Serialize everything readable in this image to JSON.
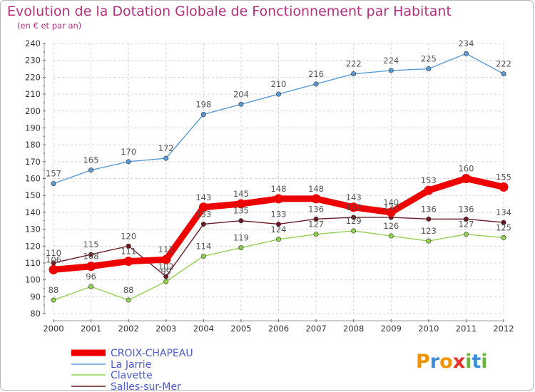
{
  "chart_data": {
    "type": "line",
    "title": "Evolution de la Dotation Globale de Fonctionnement par Habitant",
    "subtitle": "(en € et par an)",
    "x": [
      "2000",
      "2001",
      "2002",
      "2003",
      "2004",
      "2005",
      "2006",
      "2007",
      "2008",
      "2009",
      "2010",
      "2011",
      "2012"
    ],
    "ylim": [
      80,
      240
    ],
    "ytick_step": 10,
    "grid": "horizontal dashed",
    "legend_position": "bottom-left",
    "series": [
      {
        "name": "La Jarrie",
        "color": "#5b9bd5",
        "values": [
          157,
          165,
          170,
          172,
          198,
          204,
          210,
          216,
          222,
          224,
          225,
          234,
          222
        ]
      },
      {
        "name": "Clavette",
        "color": "#92d050",
        "values": [
          88,
          96,
          88,
          99,
          114,
          119,
          124,
          127,
          129,
          126,
          123,
          127,
          125
        ]
      },
      {
        "name": "Salles-sur-Mer",
        "color": "#6b1a24",
        "values": [
          110,
          115,
          120,
          102,
          133,
          135,
          133,
          136,
          137,
          137,
          136,
          136,
          134
        ]
      },
      {
        "name": "CROIX-CHAPEAU",
        "color": "#ee0000",
        "values": [
          106,
          108,
          111,
          112,
          143,
          145,
          148,
          148,
          143,
          140,
          153,
          160,
          155
        ]
      }
    ],
    "labels": {
      "La Jarrie": [
        "157",
        "165",
        "170",
        "172",
        "198",
        "204",
        "210",
        "216",
        "222",
        "224",
        "225",
        "234",
        "222"
      ],
      "Clavette": [
        "88",
        "96",
        "88",
        "99",
        "114",
        "119",
        "124",
        "127",
        "129",
        "126",
        "123",
        "127",
        "125"
      ],
      "Salles-sur-Mer": [
        "110",
        "115",
        "120",
        "102",
        "133",
        "135",
        "133",
        "136",
        "137",
        "137",
        "136",
        "136",
        "134"
      ],
      "CROIX-CHAPEAU": [
        "106",
        "108",
        "111",
        "112",
        "143",
        "145",
        "148",
        "148",
        "143",
        "140",
        "153",
        "160",
        "155"
      ]
    },
    "legend_order": [
      "CROIX-CHAPEAU",
      "La Jarrie",
      "Clavette",
      "Salles-sur-Mer"
    ]
  },
  "logo": {
    "text": "Proxiti",
    "letters": [
      {
        "ch": "P",
        "color": "#f39200"
      },
      {
        "ch": "r",
        "color": "#3b8fd8"
      },
      {
        "ch": "o",
        "color": "#f39200"
      },
      {
        "ch": "x",
        "color": "#e5332a"
      },
      {
        "ch": "i",
        "color": "#6cb33f"
      },
      {
        "ch": "t",
        "color": "#3b8fd8"
      },
      {
        "ch": "i",
        "color": "#6cb33f"
      }
    ]
  }
}
